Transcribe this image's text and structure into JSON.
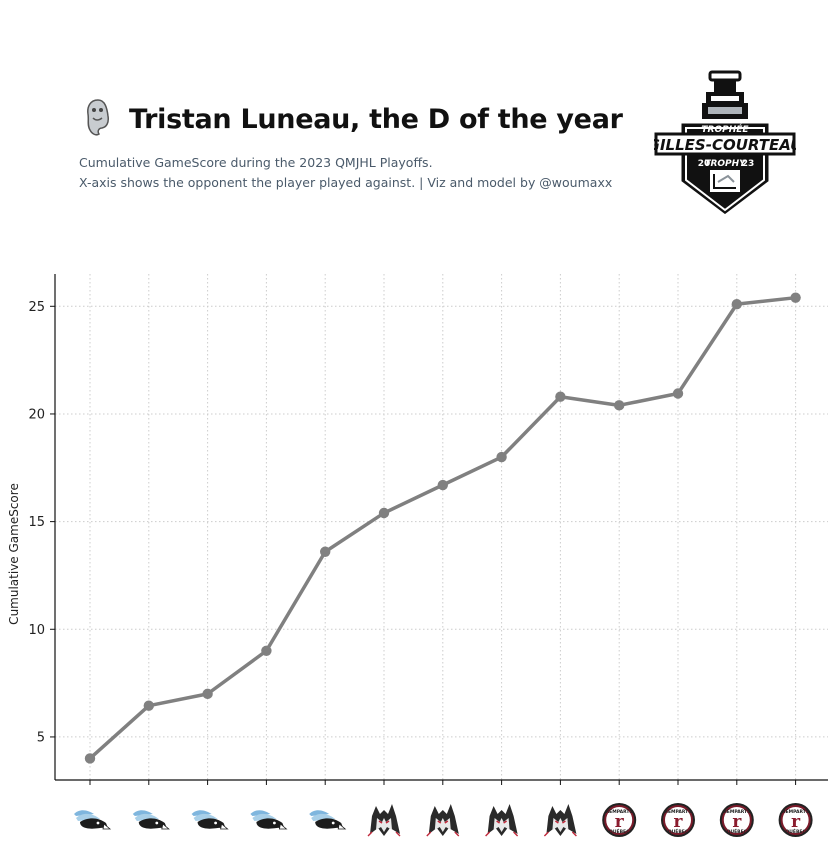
{
  "header": {
    "title": "Tristan Luneau, the D of the year",
    "subtitle_line1": "Cumulative GameScore during the 2023 QMJHL Playoffs.",
    "subtitle_line2": "X-axis shows the opponent the player played against. | Viz and model by @woumaxx",
    "player_team_logo": "ghost-mascot-logo",
    "trophy_logo": {
      "icon": "gilles-courteau-trophy-logo",
      "text_top": "TROPHÉE",
      "text_main": "GILLES-COURTEAU",
      "text_bottom": "TROPHY",
      "year_left": "20",
      "year_right": "23"
    }
  },
  "chart_data": {
    "type": "line",
    "ylabel": "Cumulative GameScore",
    "xlabel": "",
    "ylim": [
      3,
      26.5
    ],
    "yticks": [
      5,
      10,
      15,
      20,
      25
    ],
    "grid": true,
    "line_color": "#808080",
    "x_opponents": [
      "drakkar",
      "drakkar",
      "drakkar",
      "drakkar",
      "drakkar",
      "huskies",
      "huskies",
      "huskies",
      "huskies",
      "remparts",
      "remparts",
      "remparts",
      "remparts"
    ],
    "opponent_logos": {
      "drakkar": {
        "icon": "drakkar-bird-logo"
      },
      "huskies": {
        "icon": "husky-wolf-logo"
      },
      "remparts": {
        "icon": "remparts-logo",
        "text_top": "REMPARTS",
        "text_bottom": "QUÉBEC",
        "letter": "r"
      }
    },
    "values": [
      4.0,
      6.45,
      7.0,
      9.0,
      13.6,
      15.4,
      16.7,
      18.0,
      20.8,
      20.4,
      20.95,
      25.1,
      25.4
    ]
  }
}
